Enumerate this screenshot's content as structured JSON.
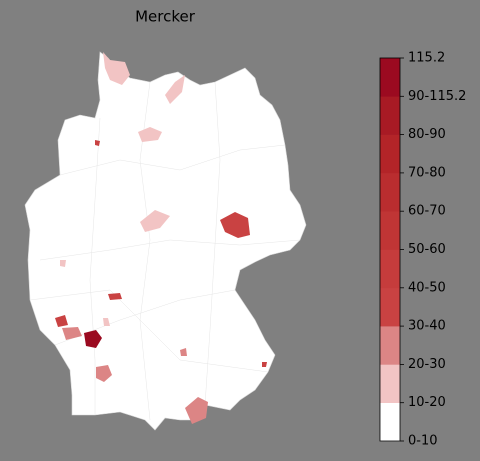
{
  "title": "Mercker",
  "colorbar": {
    "ticks": [
      "0-10",
      "10-20",
      "20-30",
      "30-40",
      "40-50",
      "50-60",
      "60-70",
      "70-80",
      "80-90",
      "90-115.2",
      "115.2"
    ],
    "colors": [
      "#ffffff",
      "#f2c4c4",
      "#dc8585",
      "#c94242",
      "#c53c3c",
      "#c03535",
      "#ba2d2f",
      "#b32428",
      "#a81a24",
      "#9b0a20"
    ]
  }
}
